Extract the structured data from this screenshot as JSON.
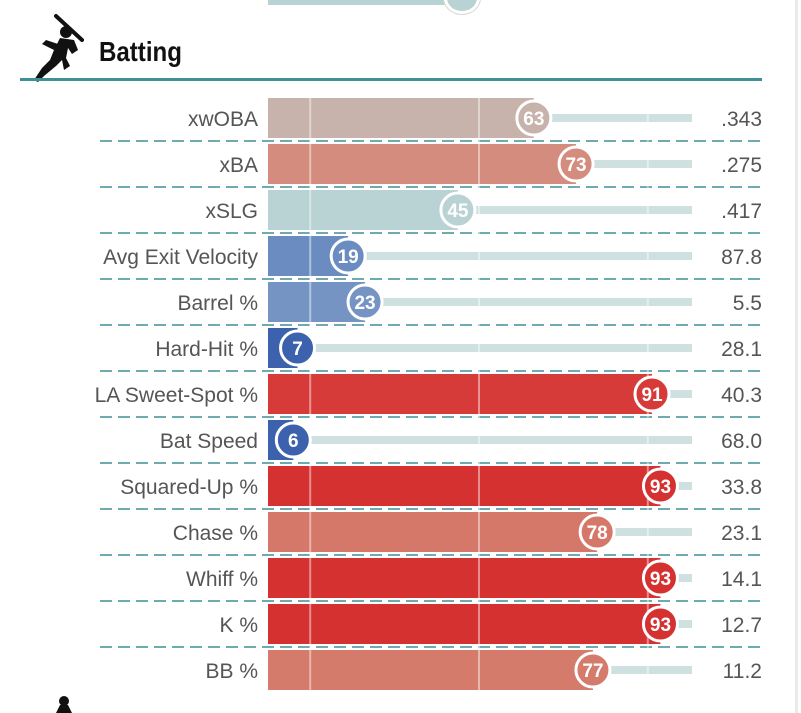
{
  "section": {
    "title": "Batting",
    "icon": "batter-silhouette-icon",
    "next_section_icon": "player-silhouette-icon"
  },
  "colors": {
    "rule": "#3f8f96",
    "track": "#cfe0e0",
    "dash": "#3f8f96",
    "label": "#555555"
  },
  "chart_data": {
    "type": "bar",
    "orientation": "horizontal",
    "title": "Batting",
    "xlim": [
      0,
      100
    ],
    "grid": true,
    "grid_values": [
      10,
      50,
      90
    ],
    "categories": [
      "xwOBA",
      "xBA",
      "xSLG",
      "Avg Exit Velocity",
      "Barrel %",
      "Hard-Hit %",
      "LA Sweet-Spot %",
      "Bat Speed",
      "Squared-Up %",
      "Chase %",
      "Whiff %",
      "K %",
      "BB %"
    ],
    "series": [
      {
        "name": "",
        "values": [
          63,
          73,
          45,
          19,
          23,
          7,
          91,
          6,
          93,
          78,
          93,
          93,
          77
        ]
      }
    ],
    "stat_values": [
      ".343",
      ".275",
      ".417",
      "87.8",
      "5.5",
      "28.1",
      "40.3",
      "68.0",
      "33.8",
      "23.1",
      "14.1",
      "12.7",
      "11.2"
    ],
    "bar_colors": [
      "#c7b2ac",
      "#d48c7e",
      "#b9d2d3",
      "#6b8cc0",
      "#7594c4",
      "#3c62ad",
      "#d73b39",
      "#3c62ad",
      "#d53131",
      "#d5786a",
      "#d53131",
      "#d53131",
      "#d47b6c"
    ]
  }
}
